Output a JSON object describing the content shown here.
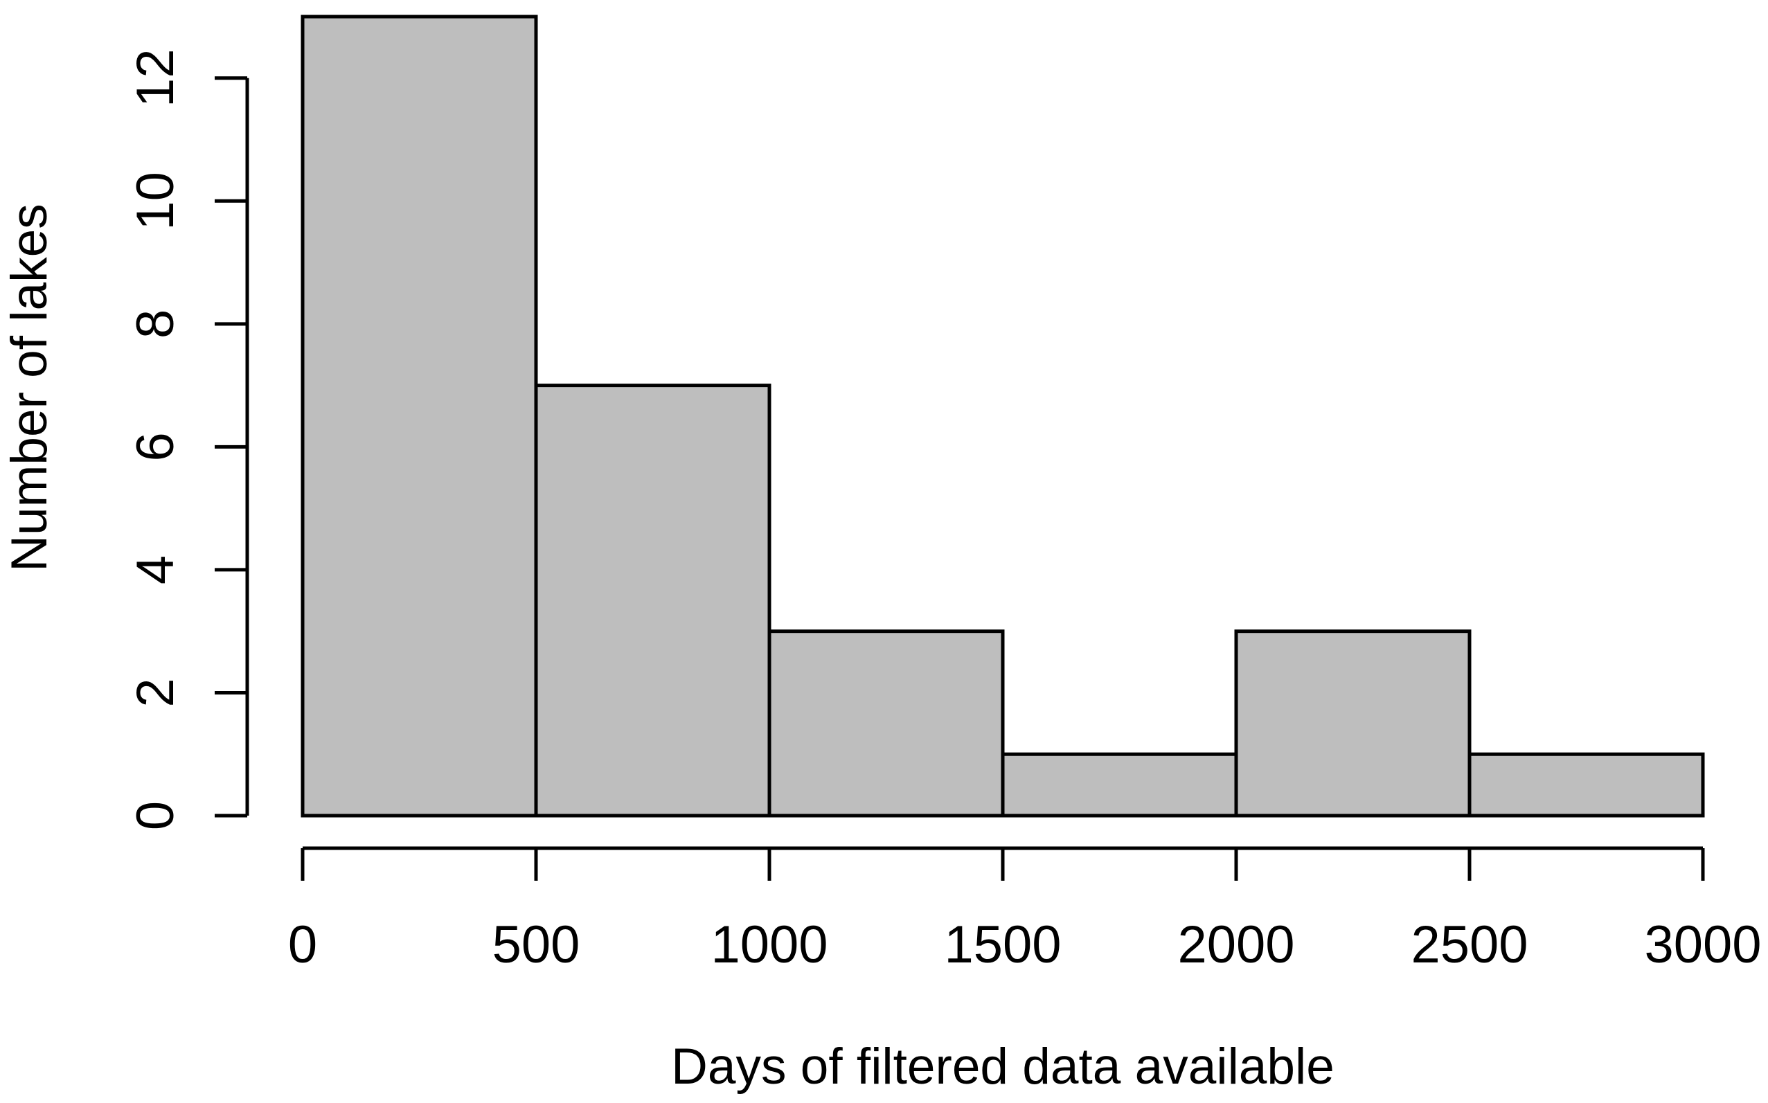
{
  "figure": {
    "background": "#ffffff"
  },
  "chart_data": {
    "type": "bar",
    "subtype": "histogram",
    "title": "",
    "xlabel": "Days of filtered data available",
    "ylabel": "Number of lakes",
    "bin_edges": [
      0,
      500,
      1000,
      1500,
      2000,
      2500,
      3000
    ],
    "counts": [
      13,
      7,
      3,
      1,
      3,
      1
    ],
    "x_ticks": [
      0,
      500,
      1000,
      1500,
      2000,
      2500,
      3000
    ],
    "y_ticks": [
      0,
      2,
      4,
      6,
      8,
      10,
      12
    ],
    "xlim": [
      0,
      3000
    ],
    "ylim": [
      0,
      13
    ],
    "grid": false,
    "legend_position": "none",
    "bar_fill": "#bebebe",
    "bar_stroke": "#000000",
    "axis_color": "#000000",
    "text_color": "#000000"
  }
}
